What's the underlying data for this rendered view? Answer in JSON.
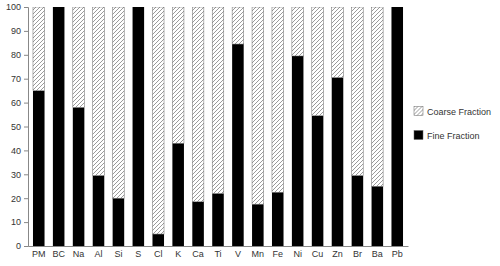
{
  "chart_data": {
    "type": "bar",
    "stacked": true,
    "legend": "right",
    "categories": [
      "PM",
      "BC",
      "Na",
      "Al",
      "Si",
      "S",
      "Cl",
      "K",
      "Ca",
      "Ti",
      "V",
      "Mn",
      "Fe",
      "Ni",
      "Cu",
      "Zn",
      "Br",
      "Ba",
      "Pb"
    ],
    "series": [
      {
        "name": "Fine Fraction",
        "color": "#000000",
        "values": [
          65,
          100,
          58,
          29.5,
          20,
          100,
          5,
          43,
          18.5,
          22,
          84.5,
          17.5,
          22.5,
          79.5,
          54.5,
          70.5,
          29.5,
          25,
          100
        ]
      },
      {
        "name": "Coarse Fraction",
        "color": "#808080",
        "marker": "hatch",
        "values": [
          35,
          0,
          42,
          70.5,
          80,
          0,
          95,
          57,
          81.5,
          78,
          15.5,
          82.5,
          77.5,
          20.5,
          45.5,
          29.5,
          70.5,
          75,
          0
        ]
      }
    ],
    "ylim": [
      0,
      100
    ],
    "yticks": [
      0,
      10,
      20,
      30,
      40,
      50,
      60,
      70,
      80,
      90,
      100
    ]
  }
}
